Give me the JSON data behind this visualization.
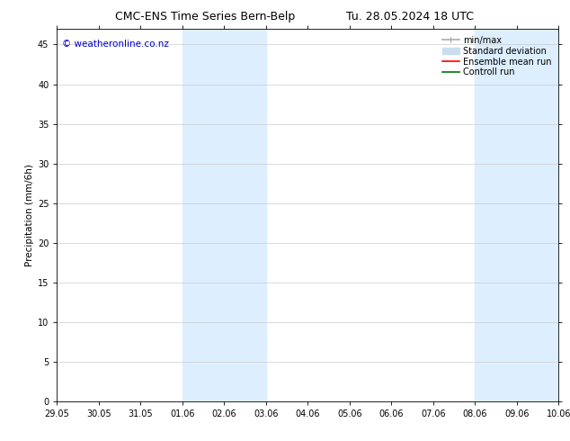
{
  "title": "CMC-ENS Time Series Bern-Belp",
  "title_right": "Tu. 28.05.2024 18 UTC",
  "ylabel": "Precipitation (mm/6h)",
  "watermark": "© weatheronline.co.nz",
  "background_color": "#ffffff",
  "plot_bg_color": "#ffffff",
  "ylim": [
    0,
    47
  ],
  "yticks": [
    0,
    5,
    10,
    15,
    20,
    25,
    30,
    35,
    40,
    45
  ],
  "x_tick_labels": [
    "29.05",
    "30.05",
    "31.05",
    "01.06",
    "02.06",
    "03.06",
    "04.06",
    "05.06",
    "06.06",
    "07.06",
    "08.06",
    "09.06",
    "10.06"
  ],
  "x_tick_positions": [
    0,
    1,
    2,
    3,
    4,
    5,
    6,
    7,
    8,
    9,
    10,
    11,
    12
  ],
  "shaded_regions": [
    {
      "x_start": 3,
      "x_end": 5,
      "color": "#ddeeff"
    },
    {
      "x_start": 10,
      "x_end": 12,
      "color": "#ddeeff"
    }
  ],
  "title_fontsize": 9,
  "axis_fontsize": 7.5,
  "tick_fontsize": 7,
  "watermark_color": "#0000cc",
  "watermark_fontsize": 7.5,
  "legend_fontsize": 7,
  "grid_color": "#cccccc",
  "grid_lw": 0.5,
  "spine_color": "#000000",
  "spine_lw": 0.6,
  "minmax_color": "#aaaaaa",
  "stddev_color": "#ccddf0",
  "ensemble_color": "#ff0000",
  "control_color": "#007700"
}
